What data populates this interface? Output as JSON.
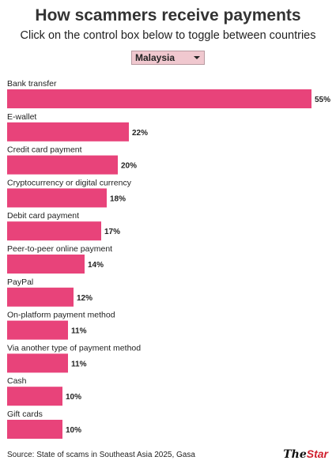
{
  "header": {
    "title": "How scammers receive payments",
    "subtitle": "Click on the control box below to toggle between countries"
  },
  "country_selector": {
    "selected": "Malaysia"
  },
  "footer": {
    "source": "Source: State of scams in Southeast Asia 2025, Gasa",
    "logo_the": "The",
    "logo_star": "Star"
  },
  "colors": {
    "bar": "#e8437a",
    "selector_bg": "#f0c8cf"
  },
  "chart_data": {
    "type": "bar",
    "orientation": "horizontal",
    "title": "How scammers receive payments",
    "categories": [
      "Bank transfer",
      "E-wallet",
      "Credit card payment",
      "Cryptocurrency or digital currency",
      "Debit card payment",
      "Peer-to-peer online payment",
      "PayPal",
      "On-platform payment method",
      "Via another type of payment method",
      "Cash",
      "Gift cards"
    ],
    "values": [
      55,
      22,
      20,
      18,
      17,
      14,
      12,
      11,
      11,
      10,
      10
    ],
    "value_labels": [
      "55%",
      "22%",
      "20%",
      "18%",
      "17%",
      "14%",
      "12%",
      "11%",
      "11%",
      "10%",
      "10%"
    ],
    "xlim": [
      0,
      55
    ],
    "grid": false,
    "legend": "none"
  }
}
